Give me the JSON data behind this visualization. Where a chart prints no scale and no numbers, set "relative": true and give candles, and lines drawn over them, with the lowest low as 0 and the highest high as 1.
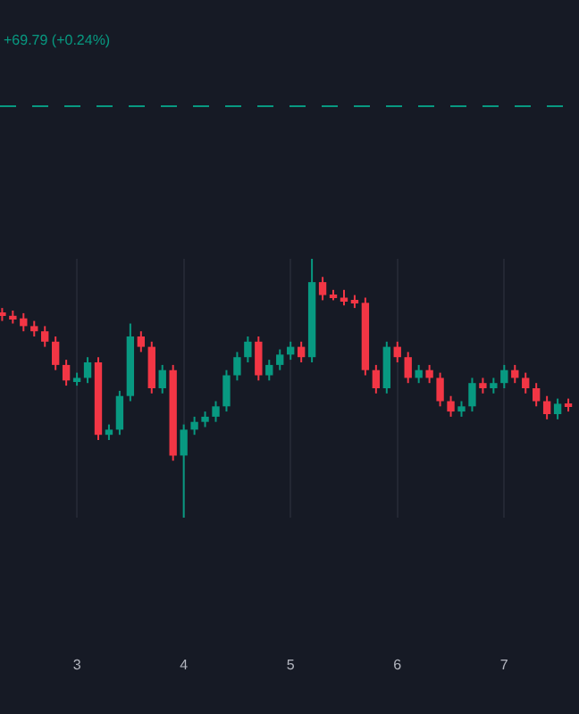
{
  "chart_data": {
    "type": "candlestick",
    "relative": true,
    "x": [
      2.3,
      2.4,
      2.5,
      2.6,
      2.7,
      2.8,
      2.9,
      3.0,
      3.1,
      3.2,
      3.3,
      3.4,
      3.5,
      3.6,
      3.7,
      3.8,
      3.9,
      4.0,
      4.1,
      4.2,
      4.3,
      4.4,
      4.5,
      4.6,
      4.7,
      4.8,
      4.9,
      5.0,
      5.1,
      5.2,
      5.3,
      5.4,
      5.5,
      5.6,
      5.7,
      5.8,
      5.9,
      6.0,
      6.1,
      6.2,
      6.3,
      6.4,
      6.5,
      6.6,
      6.7,
      6.8,
      6.9,
      7.0,
      7.1,
      7.2,
      7.3,
      7.4,
      7.5,
      7.6
    ],
    "ohlc": [
      [
        0.79,
        0.81,
        0.76,
        0.78
      ],
      [
        0.78,
        0.8,
        0.75,
        0.77
      ],
      [
        0.77,
        0.79,
        0.72,
        0.74
      ],
      [
        0.74,
        0.76,
        0.7,
        0.72
      ],
      [
        0.72,
        0.74,
        0.66,
        0.68
      ],
      [
        0.68,
        0.7,
        0.57,
        0.59
      ],
      [
        0.59,
        0.61,
        0.51,
        0.53
      ],
      [
        0.53,
        0.56,
        0.51,
        0.54
      ],
      [
        0.54,
        0.62,
        0.52,
        0.6
      ],
      [
        0.6,
        0.62,
        0.3,
        0.32
      ],
      [
        0.32,
        0.36,
        0.3,
        0.34
      ],
      [
        0.34,
        0.49,
        0.32,
        0.47
      ],
      [
        0.47,
        0.75,
        0.45,
        0.7
      ],
      [
        0.7,
        0.72,
        0.64,
        0.66
      ],
      [
        0.66,
        0.68,
        0.48,
        0.5
      ],
      [
        0.5,
        0.59,
        0.48,
        0.57
      ],
      [
        0.57,
        0.59,
        0.22,
        0.24
      ],
      [
        0.24,
        0.36,
        0,
        0.34
      ],
      [
        0.34,
        0.39,
        0.32,
        0.37
      ],
      [
        0.37,
        0.41,
        0.35,
        0.39
      ],
      [
        0.39,
        0.45,
        0.37,
        0.43
      ],
      [
        0.43,
        0.57,
        0.41,
        0.55
      ],
      [
        0.55,
        0.64,
        0.53,
        0.62
      ],
      [
        0.62,
        0.7,
        0.6,
        0.68
      ],
      [
        0.68,
        0.7,
        0.53,
        0.55
      ],
      [
        0.55,
        0.61,
        0.53,
        0.59
      ],
      [
        0.59,
        0.65,
        0.57,
        0.63
      ],
      [
        0.63,
        0.68,
        0.61,
        0.66
      ],
      [
        0.66,
        0.68,
        0.6,
        0.62
      ],
      [
        0.62,
        1,
        0.6,
        0.91
      ],
      [
        0.91,
        0.93,
        0.84,
        0.86
      ],
      [
        0.86,
        0.88,
        0.84,
        0.85
      ],
      [
        0.85,
        0.88,
        0.82,
        0.84
      ],
      [
        0.84,
        0.86,
        0.81,
        0.83
      ],
      [
        0.83,
        0.85,
        0.55,
        0.57
      ],
      [
        0.57,
        0.59,
        0.48,
        0.5
      ],
      [
        0.5,
        0.68,
        0.48,
        0.66
      ],
      [
        0.66,
        0.68,
        0.6,
        0.62
      ],
      [
        0.62,
        0.64,
        0.52,
        0.54
      ],
      [
        0.54,
        0.59,
        0.52,
        0.57
      ],
      [
        0.57,
        0.59,
        0.52,
        0.54
      ],
      [
        0.54,
        0.56,
        0.43,
        0.45
      ],
      [
        0.45,
        0.47,
        0.39,
        0.41
      ],
      [
        0.41,
        0.45,
        0.39,
        0.43
      ],
      [
        0.43,
        0.54,
        0.41,
        0.52
      ],
      [
        0.52,
        0.54,
        0.48,
        0.5
      ],
      [
        0.5,
        0.54,
        0.48,
        0.52
      ],
      [
        0.52,
        0.59,
        0.5,
        0.57
      ],
      [
        0.57,
        0.59,
        0.52,
        0.54
      ],
      [
        0.54,
        0.56,
        0.48,
        0.5
      ],
      [
        0.5,
        0.52,
        0.43,
        0.45
      ],
      [
        0.45,
        0.47,
        0.38,
        0.4
      ],
      [
        0.4,
        0.46,
        0.38,
        0.44
      ],
      [
        0.44,
        0.46,
        0.41,
        0.43
      ]
    ],
    "colors": [
      "#f23645",
      "#f23645",
      "#f23645",
      "#f23645",
      "#f23645",
      "#f23645",
      "#f23645",
      "#089981",
      "#089981",
      "#f23645",
      "#089981",
      "#089981",
      "#089981",
      "#f23645",
      "#f23645",
      "#089981",
      "#f23645",
      "#089981",
      "#089981",
      "#089981",
      "#089981",
      "#089981",
      "#089981",
      "#089981",
      "#f23645",
      "#089981",
      "#089981",
      "#089981",
      "#f23645",
      "#089981",
      "#f23645",
      "#f23645",
      "#f23645",
      "#f23645",
      "#f23645",
      "#f23645",
      "#089981",
      "#f23645",
      "#f23645",
      "#089981",
      "#f23645",
      "#f23645",
      "#f23645",
      "#089981",
      "#089981",
      "#f23645",
      "#089981",
      "#089981",
      "#f23645",
      "#f23645",
      "#f23645",
      "#f23645",
      "#089981",
      "#f23645"
    ],
    "xlim": [
      2.28,
      7.7
    ],
    "xticks": [
      3,
      4,
      5,
      6,
      7
    ],
    "ref_lines": [
      {
        "axis": "y",
        "value": 1.59,
        "color": "#089981",
        "line_style": "dashed"
      }
    ],
    "annotations": [
      "+69.79 (+0.24%)"
    ],
    "grid": "x"
  }
}
